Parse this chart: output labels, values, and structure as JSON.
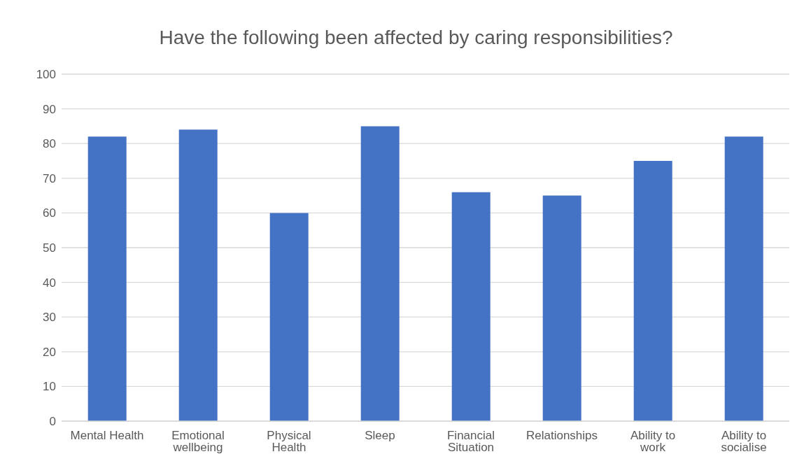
{
  "chart_data": {
    "type": "bar",
    "title": "Have the following been affected by caring responsibilities?",
    "categories": [
      "Mental Health",
      "Emotional wellbeing",
      "Physical Health",
      "Sleep",
      "Financial Situation",
      "Relationships",
      "Ability to work",
      "Ability to socialise"
    ],
    "values": [
      82,
      84,
      60,
      85,
      66,
      65,
      75,
      82
    ],
    "color": "#4472c4",
    "ylim": [
      0,
      100
    ],
    "yticks": [
      0,
      10,
      20,
      30,
      40,
      50,
      60,
      70,
      80,
      90,
      100
    ],
    "grid": "y"
  }
}
